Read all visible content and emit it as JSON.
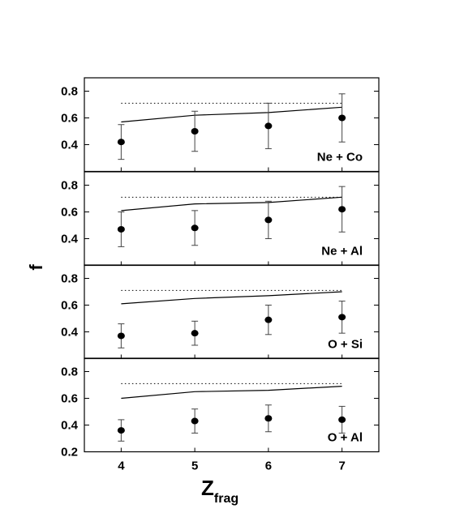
{
  "chart_data": {
    "type": "scatter",
    "layout": "4 vertically stacked panels sharing x axis",
    "xlabel": "Z",
    "xlabel_subscript": "frag",
    "ylabel": "f",
    "x": [
      4,
      5,
      6,
      7
    ],
    "xticks": [
      "4",
      "5",
      "6",
      "7"
    ],
    "xlim": [
      3.5,
      7.5
    ],
    "grid": false,
    "panels": [
      {
        "label": "Ne + Co",
        "ylim": [
          0.2,
          0.9
        ],
        "yticks": [
          "0.4",
          "0.6",
          "0.8"
        ],
        "points": {
          "y": [
            0.42,
            0.5,
            0.54,
            0.6
          ],
          "yerr": [
            0.13,
            0.15,
            0.17,
            0.18
          ]
        },
        "solid_line": {
          "x": [
            4,
            5,
            6,
            7
          ],
          "y": [
            0.57,
            0.62,
            0.64,
            0.68
          ]
        },
        "dotted_line": {
          "x": [
            4,
            7
          ],
          "y": [
            0.71,
            0.71
          ]
        }
      },
      {
        "label": "Ne + Al",
        "ylim": [
          0.2,
          0.9
        ],
        "yticks": [
          "0.4",
          "0.6",
          "0.8"
        ],
        "points": {
          "y": [
            0.47,
            0.48,
            0.54,
            0.62
          ],
          "yerr": [
            0.13,
            0.13,
            0.14,
            0.17
          ]
        },
        "solid_line": {
          "x": [
            4,
            5,
            6,
            7
          ],
          "y": [
            0.61,
            0.66,
            0.67,
            0.71
          ]
        },
        "dotted_line": {
          "x": [
            4,
            7
          ],
          "y": [
            0.71,
            0.71
          ]
        }
      },
      {
        "label": "O + Si",
        "ylim": [
          0.2,
          0.9
        ],
        "yticks": [
          "0.4",
          "0.6",
          "0.8"
        ],
        "points": {
          "y": [
            0.37,
            0.39,
            0.49,
            0.51
          ],
          "yerr": [
            0.09,
            0.09,
            0.11,
            0.12
          ]
        },
        "solid_line": {
          "x": [
            4,
            5,
            6,
            7
          ],
          "y": [
            0.61,
            0.65,
            0.67,
            0.7
          ]
        },
        "dotted_line": {
          "x": [
            4,
            7
          ],
          "y": [
            0.71,
            0.71
          ]
        }
      },
      {
        "label": "O + Al",
        "ylim": [
          0.2,
          0.9
        ],
        "yticks": [
          "0.2",
          "0.4",
          "0.6",
          "0.8"
        ],
        "points": {
          "y": [
            0.36,
            0.43,
            0.45,
            0.44
          ],
          "yerr": [
            0.08,
            0.09,
            0.1,
            0.1
          ]
        },
        "solid_line": {
          "x": [
            4,
            5,
            6,
            7
          ],
          "y": [
            0.6,
            0.65,
            0.66,
            0.69
          ]
        },
        "dotted_line": {
          "x": [
            4,
            7
          ],
          "y": [
            0.71,
            0.71
          ]
        }
      }
    ]
  }
}
